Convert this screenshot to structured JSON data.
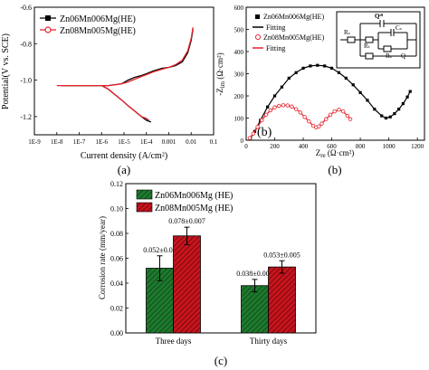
{
  "colors": {
    "series_a": "#000000",
    "series_b": "#e8202a",
    "bar_a": "#1e7a2e",
    "bar_b": "#c8141e"
  },
  "chart_data": [
    {
      "panel": "(a)",
      "type": "line",
      "xlabel": "Current density (A/cm²)",
      "ylabel": "Potential(V vs. SCE)",
      "x_scale": "log",
      "xlim": [
        1e-09,
        0.1
      ],
      "ylim": [
        -1.3,
        -0.6
      ],
      "x_ticks": [
        "1E-9",
        "1E-8",
        "1E-7",
        "1E-6",
        "1E-5",
        "1E-4",
        "0.001",
        "0.01",
        "0.1"
      ],
      "y_ticks": [
        "-0.6",
        "-0.8",
        "-1.0",
        "-1.2"
      ],
      "legend_position": "top-left",
      "series": [
        {
          "name": "Zn06Mn006Mg(HE)",
          "marker": "square",
          "x": [
            1.5e-08,
            3e-08,
            1e-07,
            3e-07,
            1e-06,
            2e-06,
            4e-06,
            8e-06,
            1.5e-05,
            3e-05,
            6e-05,
            0.0001,
            0.0002,
            0.0005,
            0.001,
            0.002,
            0.004,
            0.007,
            0.01,
            0.012
          ],
          "y": [
            -1.03,
            -1.03,
            -1.03,
            -1.03,
            -1.03,
            -1.03,
            -1.025,
            -1.02,
            -1.0,
            -0.985,
            -0.975,
            -0.965,
            -0.95,
            -0.935,
            -0.93,
            -0.92,
            -0.9,
            -0.85,
            -0.78,
            -0.72
          ]
        },
        {
          "name": "Zn06Mn006Mg(HE) cathodic",
          "marker": "square",
          "x": [
            1e-06,
            2e-06,
            4e-06,
            8e-06,
            1.5e-05,
            3e-05,
            6e-05,
            0.0001,
            0.00016
          ],
          "y": [
            -1.03,
            -1.05,
            -1.08,
            -1.11,
            -1.14,
            -1.17,
            -1.2,
            -1.22,
            -1.23
          ]
        },
        {
          "name": "Zn08Mn005Mg(HE)",
          "marker": "circle",
          "x": [
            1e-08,
            3e-08,
            1e-07,
            3e-07,
            1e-06,
            2e-06,
            4e-06,
            8e-06,
            1.5e-05,
            3e-05,
            6e-05,
            0.0001,
            0.0002,
            0.0005,
            0.001,
            0.002,
            0.004,
            0.007,
            0.01,
            0.012
          ],
          "y": [
            -1.03,
            -1.03,
            -1.03,
            -1.03,
            -1.03,
            -1.03,
            -1.025,
            -1.02,
            -1.01,
            -0.995,
            -0.98,
            -0.97,
            -0.955,
            -0.94,
            -0.93,
            -0.915,
            -0.89,
            -0.84,
            -0.77,
            -0.71
          ]
        },
        {
          "name": "Zn08Mn005Mg(HE) cathodic",
          "marker": "circle",
          "x": [
            1e-06,
            2e-06,
            4e-06,
            8e-06,
            1.5e-05,
            3e-05,
            6e-05,
            0.0001,
            0.00013
          ],
          "y": [
            -1.03,
            -1.05,
            -1.08,
            -1.11,
            -1.14,
            -1.17,
            -1.2,
            -1.21,
            -1.22
          ]
        }
      ]
    },
    {
      "panel": "(b)",
      "type": "scatter",
      "inset_label": "(b)",
      "xlabel": "Z",
      "xlabel_sub": "re",
      "xlabel_unit": " (Ω·cm²)",
      "ylabel": "-Z",
      "ylabel_sub": "im",
      "ylabel_unit": " (Ω·cm²)",
      "xlim": [
        0,
        1250
      ],
      "ylim": [
        0,
        600
      ],
      "x_ticks": [
        0,
        200,
        400,
        600,
        800,
        1000,
        1200
      ],
      "y_ticks": [
        0,
        100,
        200,
        300,
        400,
        500,
        600
      ],
      "legend_position": "top-left",
      "legend": [
        "Zn06Mn006Mg(HE)",
        "Fitting",
        "Zn08Mn005Mg(HE)",
        "Fitting"
      ],
      "circuit_labels": [
        "Rₛ",
        "Qᵈˡ",
        "Cₛ",
        "Rₜ",
        "Rₛ",
        "Rₒ",
        "Q"
      ],
      "series": [
        {
          "name": "Zn06Mn006Mg(HE)",
          "marker": "square",
          "x": [
            30,
            60,
            100,
            150,
            200,
            250,
            300,
            350,
            400,
            450,
            500,
            550,
            600,
            650,
            700,
            750,
            800,
            850,
            900,
            950,
            980,
            1010,
            1040,
            1070,
            1100,
            1130,
            1150
          ],
          "y": [
            10,
            40,
            90,
            150,
            200,
            240,
            280,
            305,
            325,
            335,
            338,
            335,
            325,
            305,
            280,
            250,
            215,
            180,
            140,
            110,
            100,
            105,
            120,
            140,
            165,
            195,
            220
          ]
        },
        {
          "name": "Zn08Mn005Mg(HE)",
          "marker": "circle",
          "x": [
            25,
            50,
            80,
            110,
            140,
            170,
            200,
            230,
            260,
            290,
            320,
            350,
            380,
            410,
            440,
            470,
            490,
            510,
            530,
            560,
            590,
            620,
            650,
            680,
            710,
            730
          ],
          "y": [
            10,
            30,
            60,
            90,
            115,
            135,
            148,
            155,
            158,
            157,
            152,
            140,
            125,
            105,
            85,
            65,
            58,
            62,
            75,
            95,
            115,
            130,
            138,
            130,
            110,
            95
          ]
        }
      ]
    },
    {
      "panel": "(c)",
      "type": "bar",
      "title": "",
      "xlabel": "",
      "ylabel": "Corrosion rate (mm/year)",
      "ylim": [
        0,
        0.12
      ],
      "y_ticks": [
        "0.00",
        "0.02",
        "0.04",
        "0.06",
        "0.08",
        "0.10",
        "0.12"
      ],
      "categories": [
        "Three days",
        "Thirty days"
      ],
      "legend_position": "top-left",
      "series": [
        {
          "name": "Zn06Mn006Mg (HE)",
          "values": [
            0.052,
            0.038
          ],
          "errors": [
            0.01,
            0.005
          ],
          "labels": [
            "0.052±0.01",
            "0.038±0.005"
          ]
        },
        {
          "name": "Zn08Mn005Mg (HE)",
          "values": [
            0.078,
            0.053
          ],
          "errors": [
            0.007,
            0.005
          ],
          "labels": [
            "0.078±0.007",
            "0.053±0.005"
          ]
        }
      ]
    }
  ]
}
